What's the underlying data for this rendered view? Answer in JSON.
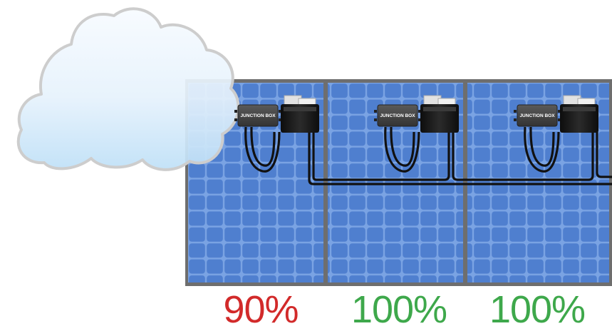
{
  "panels": [
    {
      "output_label": "90%",
      "output_color": "#d22a2a",
      "shaded": true,
      "junction_box_label": "JUNCTION BOX"
    },
    {
      "output_label": "100%",
      "output_color": "#3ea84b",
      "shaded": false,
      "junction_box_label": "JUNCTION BOX"
    },
    {
      "output_label": "100%",
      "output_color": "#3ea84b",
      "shaded": false,
      "junction_box_label": "JUNCTION BOX"
    }
  ],
  "colors": {
    "frame": "#6e6e6e",
    "cell": "#4f7fcf",
    "cell_grid": "#7aa3e3",
    "cable": "#111111",
    "cloud_fill": "#eaf4fd"
  },
  "icons": [
    "cloud-icon",
    "junction-box-icon",
    "optimizer-icon"
  ]
}
